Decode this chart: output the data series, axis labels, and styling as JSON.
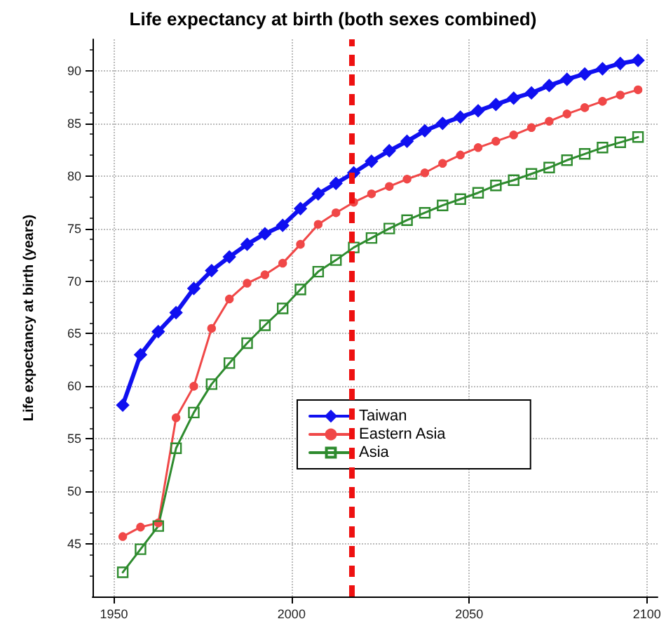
{
  "chart_data": {
    "type": "line",
    "title": "Life expectancy at birth (both sexes combined)",
    "ylabel": "Life expectancy at birth (years)",
    "x": [
      1952.5,
      1957.5,
      1962.5,
      1967.5,
      1972.5,
      1977.5,
      1982.5,
      1987.5,
      1992.5,
      1997.5,
      2002.5,
      2007.5,
      2012.5,
      2017.5,
      2022.5,
      2027.5,
      2032.5,
      2037.5,
      2042.5,
      2047.5,
      2052.5,
      2057.5,
      2062.5,
      2067.5,
      2072.5,
      2077.5,
      2082.5,
      2087.5,
      2092.5,
      2097.5
    ],
    "series": [
      {
        "name": "Taiwan",
        "color": "#1010f0",
        "marker": "diamond",
        "values": [
          58.2,
          63,
          65.2,
          67,
          69.3,
          71,
          72.3,
          73.5,
          74.5,
          75.3,
          76.9,
          78.3,
          79.3,
          80.3,
          81.4,
          82.4,
          83.3,
          84.3,
          85.0,
          85.6,
          86.2,
          86.8,
          87.4,
          87.9,
          88.6,
          89.2,
          89.7,
          90.2,
          90.7,
          91.0
        ]
      },
      {
        "name": "Eastern Asia",
        "color": "#f04848",
        "marker": "circle",
        "values": [
          45.7,
          46.6,
          47.0,
          57,
          60,
          65.5,
          68.3,
          69.8,
          70.6,
          71.7,
          73.5,
          75.4,
          76.5,
          77.5,
          78.3,
          79.0,
          79.7,
          80.3,
          81.2,
          82.0,
          82.7,
          83.3,
          83.9,
          84.6,
          85.2,
          85.9,
          86.5,
          87.1,
          87.7,
          88.2
        ]
      },
      {
        "name": "Asia",
        "color": "#2e8b2e",
        "marker": "square",
        "values": [
          42.3,
          44.5,
          46.7,
          54.1,
          57.5,
          60.2,
          62.2,
          64.1,
          65.8,
          67.4,
          69.2,
          70.9,
          72.0,
          73.2,
          74.1,
          75.0,
          75.8,
          76.5,
          77.2,
          77.8,
          78.4,
          79.1,
          79.6,
          80.2,
          80.8,
          81.5,
          82.1,
          82.7,
          83.2,
          83.7
        ]
      }
    ],
    "xlim": [
      1944,
      2103
    ],
    "xticks": [
      1950,
      2000,
      2050,
      2100
    ],
    "ylim": [
      40,
      93
    ],
    "yticks": [
      45,
      50,
      55,
      60,
      65,
      70,
      75,
      80,
      85,
      90
    ],
    "ref_lines": [
      {
        "axis": "x",
        "value": 2017,
        "color": "#ee1111",
        "line_style": "dashed"
      }
    ],
    "grid": true,
    "legend": "right",
    "line_style": "solid"
  }
}
